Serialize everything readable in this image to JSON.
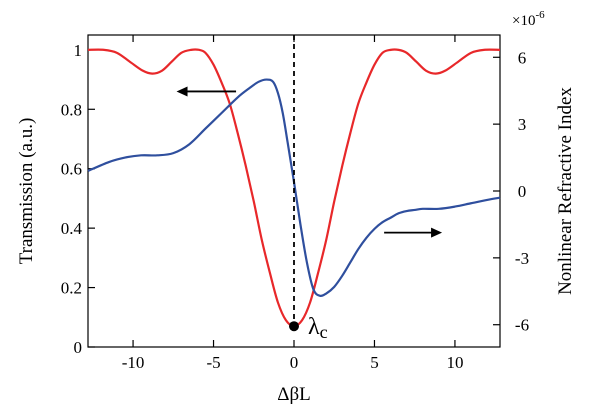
{
  "chart_data": {
    "type": "line",
    "title": "",
    "xlabel": "ΔβL",
    "ylabel_left": "Transmission (a.u.)",
    "ylabel_right": "Nonlinear Refractive Index",
    "right_axis_multiplier": "×10",
    "right_axis_exponent": "-6",
    "xlim": [
      -12.8,
      12.8
    ],
    "ylim_left": [
      0,
      1.05
    ],
    "ylim_right": [
      -7,
      7
    ],
    "x_ticks": [
      -10,
      -5,
      0,
      5,
      10
    ],
    "x_tick_labels": [
      "-10",
      "-5",
      "0",
      "5",
      "10"
    ],
    "y_left_ticks": [
      0,
      0.2,
      0.4,
      0.6,
      0.8,
      1
    ],
    "y_left_tick_labels": [
      "0",
      "0.2",
      "0.4",
      "0.6",
      "0.8",
      "1"
    ],
    "y_right_ticks": [
      -6,
      -3,
      0,
      3,
      6
    ],
    "y_right_tick_labels": [
      "-6",
      "-3",
      "0",
      "3",
      "6"
    ],
    "series": [
      {
        "axis": "left",
        "color": "#e8282a",
        "x": [
          -12.8,
          -11.8,
          -11,
          -10.2,
          -9.4,
          -8.8,
          -8.2,
          -7.6,
          -7,
          -6.4,
          -5.9,
          -5.5,
          -5,
          -4.5,
          -4,
          -3.5,
          -3,
          -2.5,
          -2,
          -1.5,
          -1,
          -0.5,
          0,
          0.5,
          1,
          1.5,
          2,
          2.5,
          3,
          3.5,
          4,
          4.5,
          5,
          5.5,
          6,
          6.5,
          7,
          7.6,
          8.2,
          8.8,
          9.4,
          10.2,
          11,
          11.8,
          12.8
        ],
        "values": [
          1,
          1,
          0.99,
          0.96,
          0.93,
          0.92,
          0.93,
          0.96,
          0.99,
          1,
          1,
          0.99,
          0.95,
          0.89,
          0.82,
          0.72,
          0.61,
          0.49,
          0.36,
          0.25,
          0.15,
          0.09,
          0.07,
          0.09,
          0.15,
          0.25,
          0.36,
          0.49,
          0.61,
          0.72,
          0.82,
          0.89,
          0.95,
          0.99,
          1,
          1,
          0.99,
          0.96,
          0.93,
          0.92,
          0.93,
          0.96,
          0.99,
          1,
          1
        ]
      },
      {
        "axis": "right",
        "color": "#2f4f9e",
        "x": [
          -12.8,
          -11.5,
          -10.5,
          -9.5,
          -8.5,
          -7.5,
          -6.5,
          -5.5,
          -4.5,
          -3.5,
          -2.8,
          -2.2,
          -1.7,
          -1.3,
          -1,
          -0.7,
          -0.4,
          0,
          0.4,
          0.8,
          1.2,
          1.6,
          2,
          2.5,
          3,
          3.5,
          4,
          4.5,
          5,
          5.5,
          6,
          6.5,
          7,
          7.5,
          8,
          9,
          10,
          11,
          12,
          12.8
        ],
        "values": [
          0.9,
          1.3,
          1.5,
          1.6,
          1.6,
          1.7,
          2.1,
          2.8,
          3.5,
          4.2,
          4.6,
          4.9,
          5,
          4.9,
          4.4,
          3.5,
          2.2,
          0.4,
          -1.5,
          -3.2,
          -4.4,
          -4.7,
          -4.6,
          -4.3,
          -3.8,
          -3.2,
          -2.6,
          -2.1,
          -1.7,
          -1.4,
          -1.2,
          -1.0,
          -0.9,
          -0.85,
          -0.8,
          -0.8,
          -0.7,
          -0.55,
          -0.4,
          -0.3
        ]
      }
    ],
    "annotations": {
      "lambda_label": "λ",
      "lambda_subscript": "c",
      "marker_x": 0,
      "marker_y": 0.07,
      "vline_x": 0,
      "left_arrow": {
        "x_from": -3.6,
        "x_to": -7.3,
        "y": 0.86
      },
      "right_arrow": {
        "x_from": 5.6,
        "x_to": 9.2,
        "y": 0.385
      }
    },
    "grid": false
  }
}
